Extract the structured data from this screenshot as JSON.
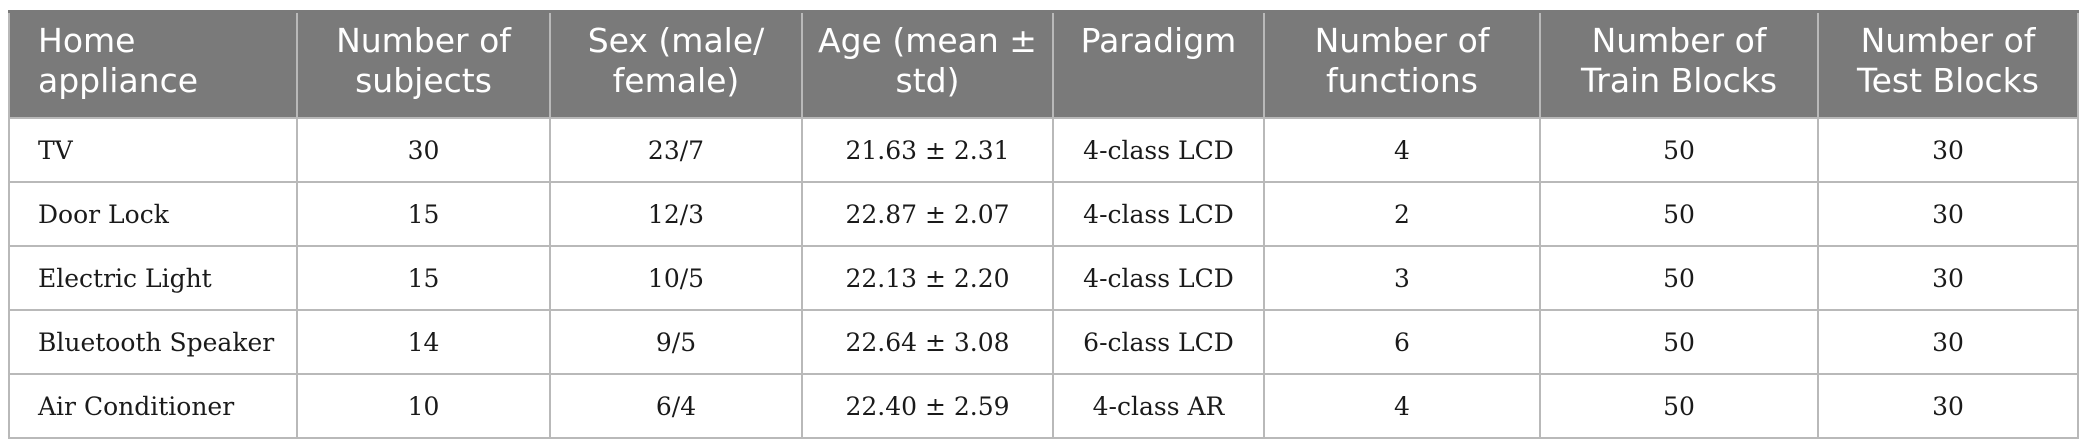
{
  "headers": [
    "Home appliance",
    "Number of subjects",
    "Sex (male/ female)",
    "Age (mean ± std)",
    "Paradigm",
    "Number of functions",
    "Number of Train Blocks",
    "Number of Test Blocks"
  ],
  "rows": [
    [
      "TV",
      "30",
      "23/7",
      "21.63 ± 2.31",
      "4-class LCD",
      "4",
      "50",
      "30"
    ],
    [
      "Door Lock",
      "15",
      "12/3",
      "22.87 ± 2.07",
      "4-class LCD",
      "2",
      "50",
      "30"
    ],
    [
      "Electric Light",
      "15",
      "10/5",
      "22.13 ± 2.20",
      "4-class LCD",
      "3",
      "50",
      "30"
    ],
    [
      "Bluetooth Speaker",
      "14",
      "9/5",
      "22.64 ± 3.08",
      "6-class LCD",
      "6",
      "50",
      "30"
    ],
    [
      "Air Conditioner",
      "10",
      "6/4",
      "22.40 ± 2.59",
      "4-class AR",
      "4",
      "50",
      "30"
    ]
  ],
  "colors": {
    "header_bg": "#7a7a7a",
    "header_text": "#ffffff",
    "grid": "#b9b9b9"
  }
}
